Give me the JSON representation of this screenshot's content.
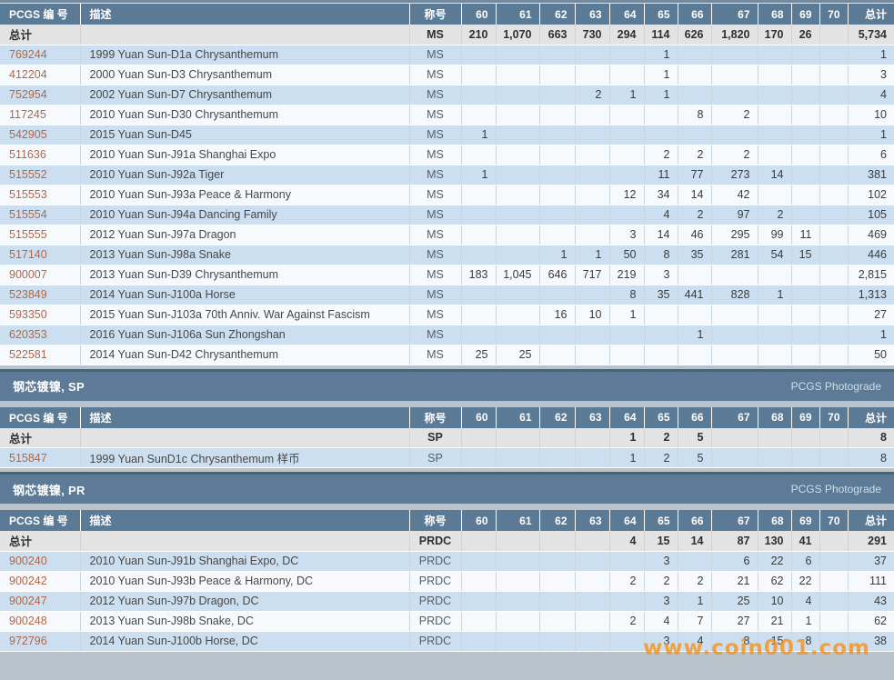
{
  "header": {
    "id": "PCGS 编 号",
    "desc": "描述",
    "designation": "称号",
    "grades": [
      "60",
      "61",
      "62",
      "63",
      "64",
      "65",
      "66",
      "67",
      "68",
      "69",
      "70"
    ],
    "total": "总计"
  },
  "total_label": "总计",
  "watermark": {
    "text": "www.coin001.com"
  },
  "sections": [
    {
      "band": null,
      "totals": {
        "designation": "MS",
        "values": [
          "210",
          "1,070",
          "663",
          "730",
          "294",
          "114",
          "626",
          "1,820",
          "170",
          "26",
          ""
        ],
        "total": "5,734"
      },
      "rows": [
        {
          "id": "769244",
          "desc": "1999 Yuan Sun-D1a Chrysanthemum",
          "designation": "MS",
          "values": [
            "",
            "",
            "",
            "",
            "",
            "1",
            "",
            "",
            "",
            "",
            ""
          ],
          "total": "1"
        },
        {
          "id": "412204",
          "desc": "2000 Yuan Sun-D3 Chrysanthemum",
          "designation": "MS",
          "values": [
            "",
            "",
            "",
            "",
            "",
            "1",
            "",
            "",
            "",
            "",
            ""
          ],
          "total": "3"
        },
        {
          "id": "752954",
          "desc": "2002 Yuan Sun-D7 Chrysanthemum",
          "designation": "MS",
          "values": [
            "",
            "",
            "",
            "2",
            "1",
            "1",
            "",
            "",
            "",
            "",
            ""
          ],
          "total": "4"
        },
        {
          "id": "117245",
          "desc": "2010 Yuan Sun-D30 Chrysanthemum",
          "designation": "MS",
          "values": [
            "",
            "",
            "",
            "",
            "",
            "",
            "8",
            "2",
            "",
            "",
            ""
          ],
          "total": "10"
        },
        {
          "id": "542905",
          "desc": "2015 Yuan Sun-D45",
          "designation": "MS",
          "values": [
            "1",
            "",
            "",
            "",
            "",
            "",
            "",
            "",
            "",
            "",
            ""
          ],
          "total": "1"
        },
        {
          "id": "511636",
          "desc": "2010 Yuan Sun-J91a Shanghai Expo",
          "designation": "MS",
          "values": [
            "",
            "",
            "",
            "",
            "",
            "2",
            "2",
            "2",
            "",
            "",
            ""
          ],
          "total": "6"
        },
        {
          "id": "515552",
          "desc": "2010 Yuan Sun-J92a Tiger",
          "designation": "MS",
          "values": [
            "1",
            "",
            "",
            "",
            "",
            "11",
            "77",
            "273",
            "14",
            "",
            ""
          ],
          "total": "381"
        },
        {
          "id": "515553",
          "desc": "2010 Yuan Sun-J93a Peace & Harmony",
          "designation": "MS",
          "values": [
            "",
            "",
            "",
            "",
            "12",
            "34",
            "14",
            "42",
            "",
            "",
            ""
          ],
          "total": "102"
        },
        {
          "id": "515554",
          "desc": "2010 Yuan Sun-J94a Dancing Family",
          "designation": "MS",
          "values": [
            "",
            "",
            "",
            "",
            "",
            "4",
            "2",
            "97",
            "2",
            "",
            ""
          ],
          "total": "105"
        },
        {
          "id": "515555",
          "desc": "2012 Yuan Sun-J97a Dragon",
          "designation": "MS",
          "values": [
            "",
            "",
            "",
            "",
            "3",
            "14",
            "46",
            "295",
            "99",
            "11",
            ""
          ],
          "total": "469"
        },
        {
          "id": "517140",
          "desc": "2013 Yuan Sun-J98a Snake",
          "designation": "MS",
          "values": [
            "",
            "",
            "1",
            "1",
            "50",
            "8",
            "35",
            "281",
            "54",
            "15",
            ""
          ],
          "total": "446"
        },
        {
          "id": "900007",
          "desc": "2013 Yuan Sun-D39 Chrysanthemum",
          "designation": "MS",
          "values": [
            "183",
            "1,045",
            "646",
            "717",
            "219",
            "3",
            "",
            "",
            "",
            "",
            ""
          ],
          "total": "2,815"
        },
        {
          "id": "523849",
          "desc": "2014 Yuan Sun-J100a Horse",
          "designation": "MS",
          "values": [
            "",
            "",
            "",
            "",
            "8",
            "35",
            "441",
            "828",
            "1",
            "",
            ""
          ],
          "total": "1,313"
        },
        {
          "id": "593350",
          "desc": "2015 Yuan Sun-J103a 70th Anniv. War Against Fascism",
          "designation": "MS",
          "values": [
            "",
            "",
            "16",
            "10",
            "1",
            "",
            "",
            "",
            "",
            "",
            ""
          ],
          "total": "27"
        },
        {
          "id": "620353",
          "desc": "2016 Yuan Sun-J106a Sun Zhongshan",
          "designation": "MS",
          "values": [
            "",
            "",
            "",
            "",
            "",
            "",
            "1",
            "",
            "",
            "",
            ""
          ],
          "total": "1"
        },
        {
          "id": "522581",
          "desc": "2014 Yuan Sun-D42 Chrysanthemum",
          "designation": "MS",
          "values": [
            "25",
            "25",
            "",
            "",
            "",
            "",
            "",
            "",
            "",
            "",
            ""
          ],
          "total": "50"
        }
      ]
    },
    {
      "band": {
        "title": "钢芯镀镍, SP",
        "link": "PCGS Photograde"
      },
      "totals": {
        "designation": "SP",
        "values": [
          "",
          "",
          "",
          "",
          "1",
          "2",
          "5",
          "",
          "",
          "",
          ""
        ],
        "total": "8"
      },
      "rows": [
        {
          "id": "515847",
          "desc": "1999 Yuan SunD1c Chrysanthemum 样币",
          "designation": "SP",
          "values": [
            "",
            "",
            "",
            "",
            "1",
            "2",
            "5",
            "",
            "",
            "",
            ""
          ],
          "total": "8"
        }
      ]
    },
    {
      "band": {
        "title": "钢芯镀镍, PR",
        "link": "PCGS Photograde"
      },
      "totals": {
        "designation": "PRDC",
        "values": [
          "",
          "",
          "",
          "",
          "4",
          "15",
          "14",
          "87",
          "130",
          "41",
          ""
        ],
        "total": "291"
      },
      "rows": [
        {
          "id": "900240",
          "desc": "2010 Yuan Sun-J91b Shanghai Expo, DC",
          "designation": "PRDC",
          "values": [
            "",
            "",
            "",
            "",
            "",
            "3",
            "",
            "6",
            "22",
            "6",
            ""
          ],
          "total": "37"
        },
        {
          "id": "900242",
          "desc": "2010 Yuan Sun-J93b Peace & Harmony, DC",
          "designation": "PRDC",
          "values": [
            "",
            "",
            "",
            "",
            "2",
            "2",
            "2",
            "21",
            "62",
            "22",
            ""
          ],
          "total": "111"
        },
        {
          "id": "900247",
          "desc": "2012 Yuan Sun-J97b Dragon, DC",
          "designation": "PRDC",
          "values": [
            "",
            "",
            "",
            "",
            "",
            "3",
            "1",
            "25",
            "10",
            "4",
            ""
          ],
          "total": "43"
        },
        {
          "id": "900248",
          "desc": "2013 Yuan Sun-J98b Snake, DC",
          "designation": "PRDC",
          "values": [
            "",
            "",
            "",
            "",
            "2",
            "4",
            "7",
            "27",
            "21",
            "1",
            ""
          ],
          "total": "62"
        },
        {
          "id": "972796",
          "desc": "2014 Yuan Sun-J100b Horse, DC",
          "designation": "PRDC",
          "values": [
            "",
            "",
            "",
            "",
            "",
            "3",
            "4",
            "8",
            "15",
            "8",
            ""
          ],
          "total": "38"
        }
      ]
    }
  ]
}
